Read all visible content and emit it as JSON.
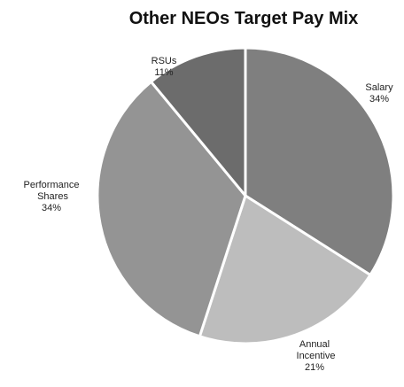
{
  "chart_data": {
    "type": "pie",
    "title": "Other NEOs Target Pay Mix",
    "categories": [
      "Salary",
      "Annual Incentive",
      "Performance Shares",
      "RSUs"
    ],
    "values": [
      34,
      21,
      34,
      11
    ],
    "value_labels": [
      "34%",
      "21%",
      "34%",
      "11%"
    ],
    "colors": [
      "#7f7f7f",
      "#bdbdbd",
      "#949494",
      "#6c6c6c"
    ]
  }
}
